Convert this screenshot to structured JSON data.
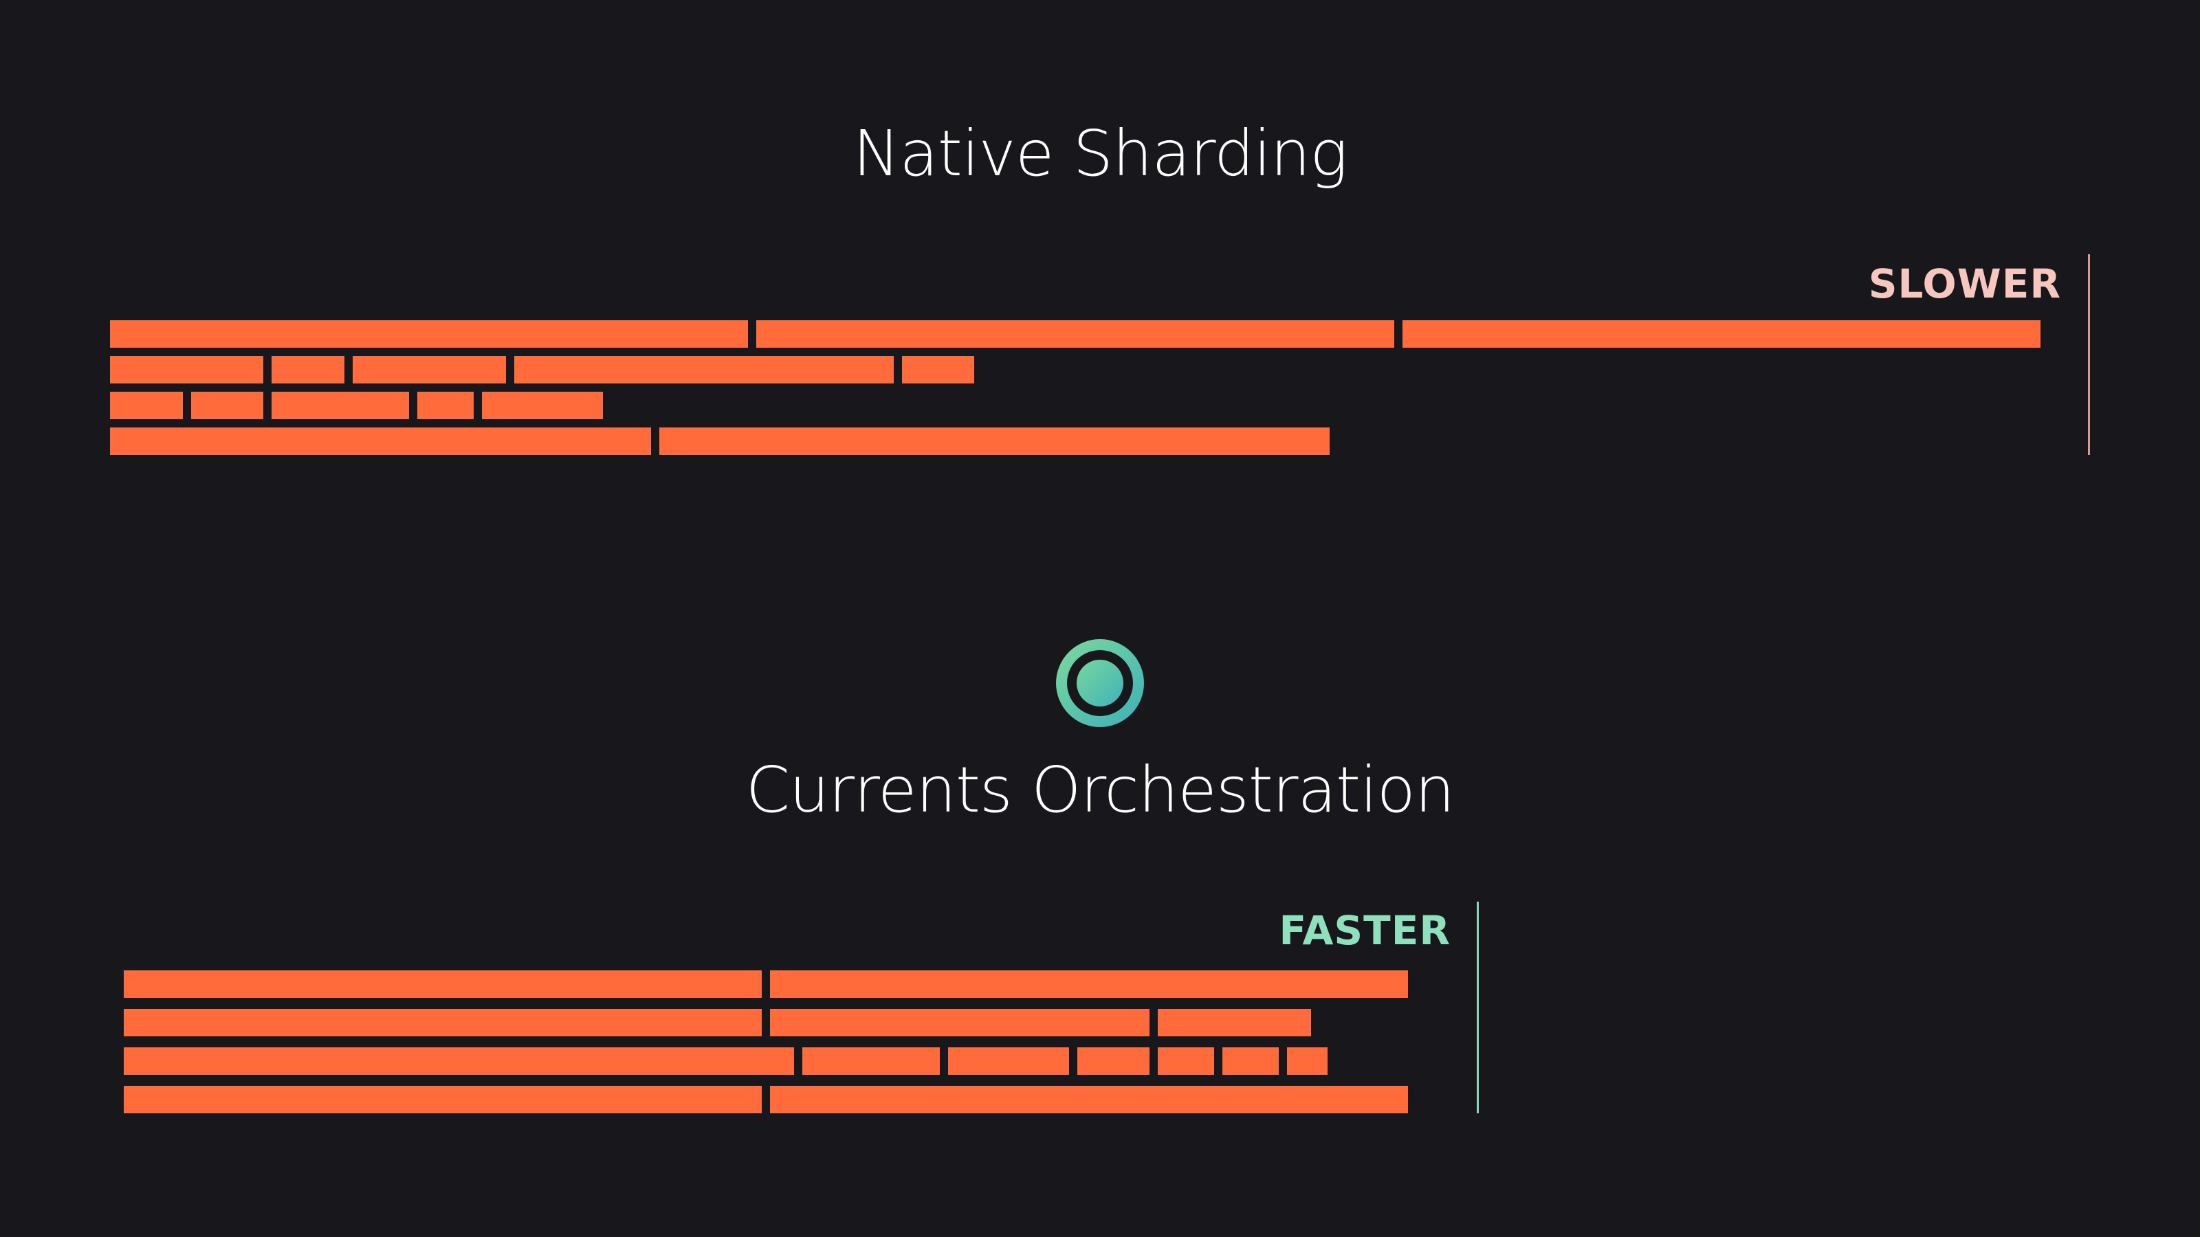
{
  "colors": {
    "background": "#18181c",
    "bar": "#ff6b3a",
    "slower_accent": "#f7c6bf",
    "slower_marker": "#d79c94",
    "faster_accent": "#8fe0bd",
    "faster_marker": "#8ad6b5",
    "logo_start": "#78d79e",
    "logo_end": "#3fb3b8"
  },
  "icons": {
    "logo": "currents-logo-icon"
  },
  "native_sharding": {
    "title": "Native Sharding",
    "label": "SLOWER",
    "rows": [
      [
        2,
        2,
        2
      ],
      [
        0.5,
        0.25,
        0.5,
        1.2,
        0.25
      ],
      [
        0.25,
        0.25,
        0.45,
        0.2,
        0.4
      ],
      [
        1.7,
        2.1
      ]
    ]
  },
  "currents_orchestration": {
    "title": "Currents Orchestration",
    "label": "FASTER",
    "rows": [
      [
        2,
        2
      ],
      [
        2,
        1.2,
        0.5
      ],
      [
        2.1,
        0.45,
        0.4,
        0.25,
        0.2,
        0.2,
        0.15
      ],
      [
        2,
        2
      ]
    ]
  }
}
